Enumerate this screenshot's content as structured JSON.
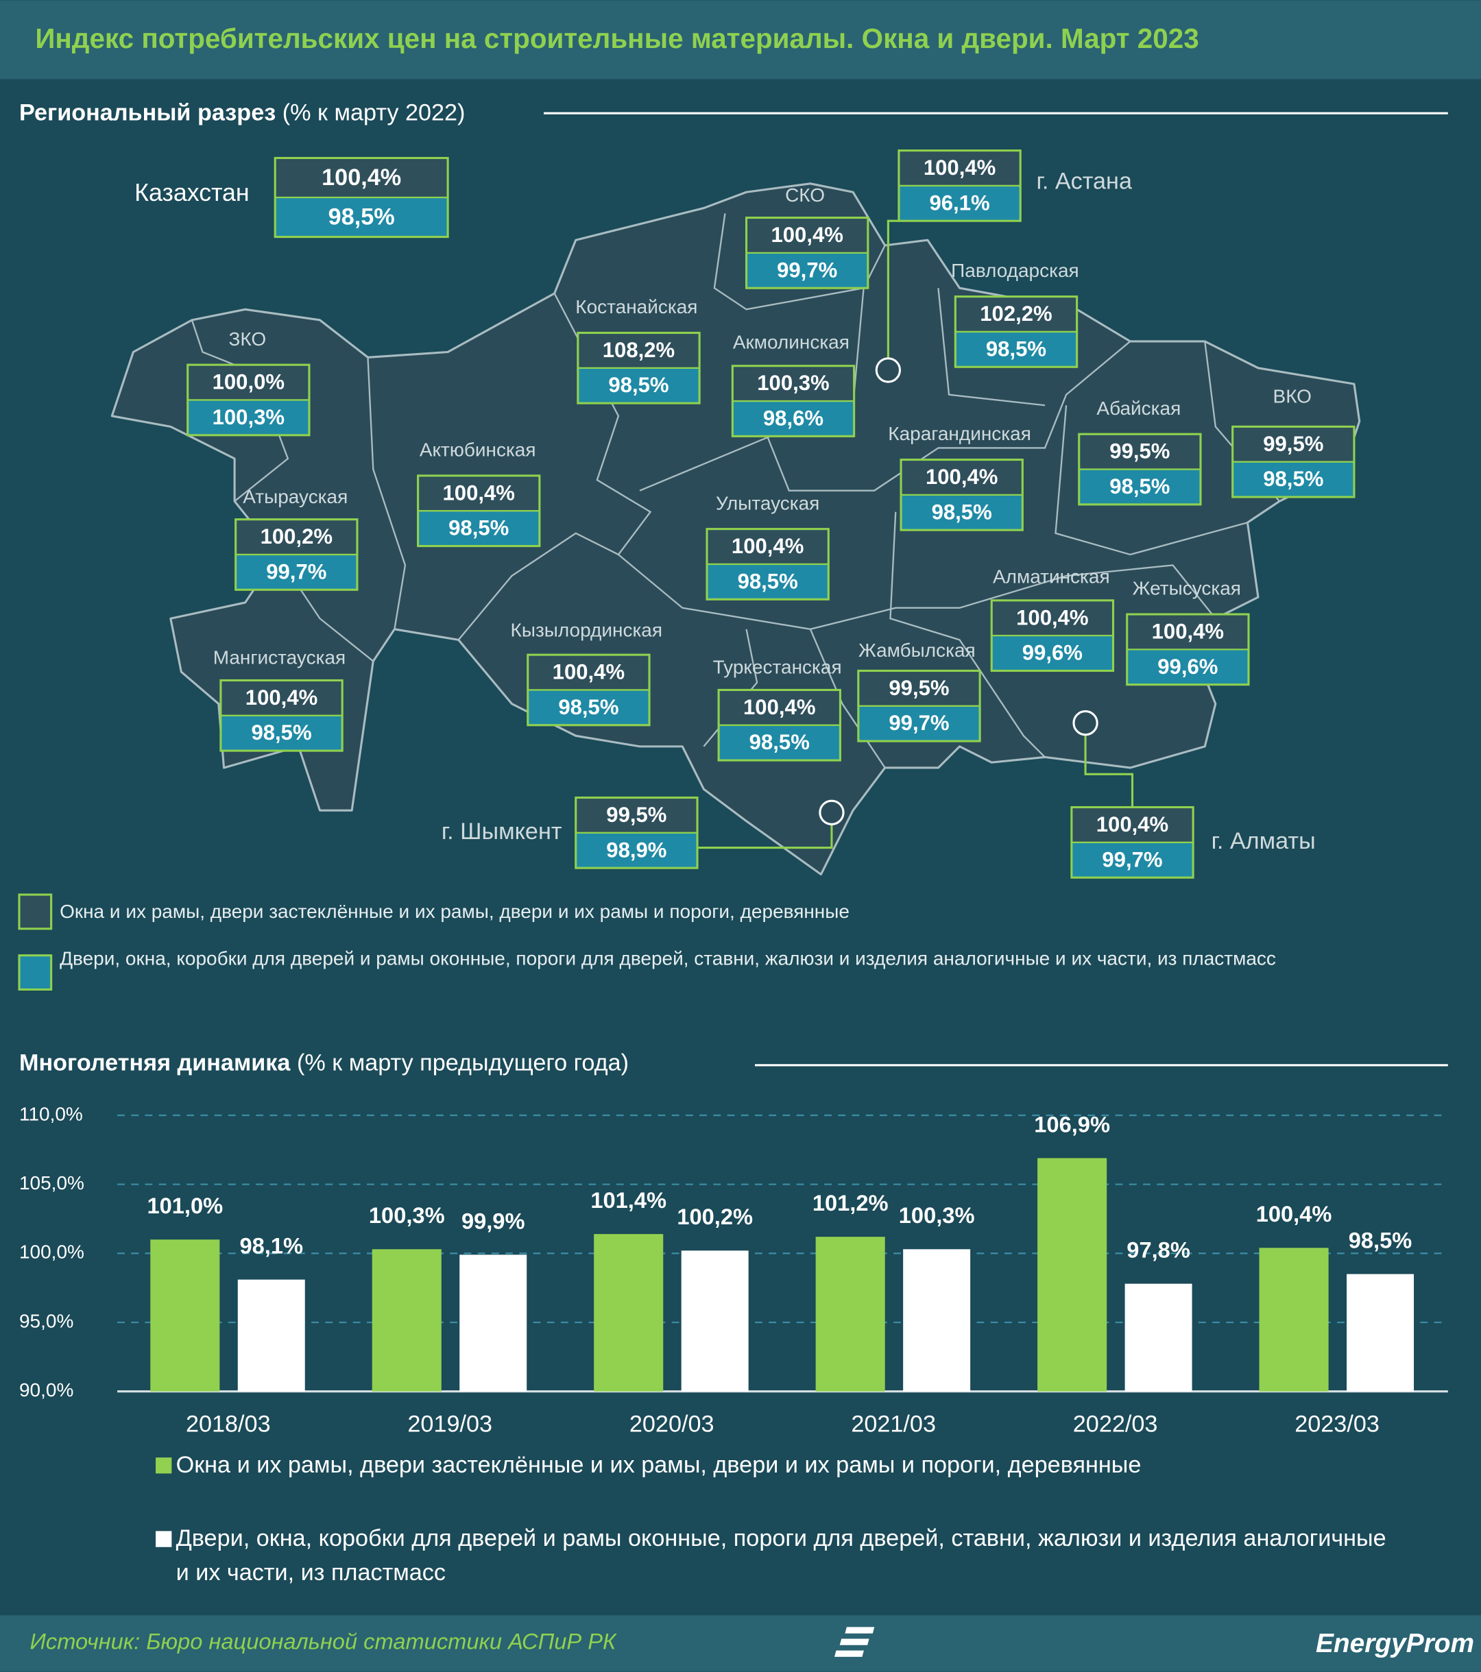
{
  "header": {
    "title": "Индекс потребительских цен на строительные материалы. Окна и двери. Март 2023"
  },
  "map": {
    "heading": "Региональный разрез",
    "heading_note": "(% к марту 2022)",
    "regions": [
      {
        "name": "Казахстан",
        "wood": "100,4%",
        "plastic": "98,5%"
      },
      {
        "name": "СКО",
        "wood": "100,4%",
        "plastic": "99,7%"
      },
      {
        "name": "г. Астана",
        "wood": "100,4%",
        "plastic": "96,1%"
      },
      {
        "name": "Павлодарская",
        "wood": "102,2%",
        "plastic": "98,5%"
      },
      {
        "name": "Костанайская",
        "wood": "108,2%",
        "plastic": "98,5%"
      },
      {
        "name": "Акмолинская",
        "wood": "100,3%",
        "plastic": "98,6%"
      },
      {
        "name": "ЗКО",
        "wood": "100,0%",
        "plastic": "100,3%"
      },
      {
        "name": "Актюбинская",
        "wood": "100,4%",
        "plastic": "98,5%"
      },
      {
        "name": "Атырауская",
        "wood": "100,2%",
        "plastic": "99,7%"
      },
      {
        "name": "Абайская",
        "wood": "99,5%",
        "plastic": "98,5%"
      },
      {
        "name": "ВКО",
        "wood": "99,5%",
        "plastic": "98,5%"
      },
      {
        "name": "Карагандинская",
        "wood": "100,4%",
        "plastic": "98,5%"
      },
      {
        "name": "Улытауская",
        "wood": "100,4%",
        "plastic": "98,5%"
      },
      {
        "name": "Алматинская",
        "wood": "100,4%",
        "plastic": "99,6%"
      },
      {
        "name": "Жетысуская",
        "wood": "100,4%",
        "plastic": "99,6%"
      },
      {
        "name": "Кызылординская",
        "wood": "100,4%",
        "plastic": "98,5%"
      },
      {
        "name": "Туркестанская",
        "wood": "100,4%",
        "plastic": "98,5%"
      },
      {
        "name": "Жамбылская",
        "wood": "99,5%",
        "plastic": "99,7%"
      },
      {
        "name": "Мангистауская",
        "wood": "100,4%",
        "plastic": "98,5%"
      },
      {
        "name": "г. Шымкент",
        "wood": "99,5%",
        "plastic": "98,9%"
      },
      {
        "name": "г. Алматы",
        "wood": "100,4%",
        "plastic": "99,7%"
      }
    ]
  },
  "chart_data": {
    "type": "bar",
    "heading": "Многолетняя динамика",
    "heading_note": "(% к марту предыдущего года)",
    "categories": [
      "2018/03",
      "2019/03",
      "2020/03",
      "2021/03",
      "2022/03",
      "2023/03"
    ],
    "series": [
      {
        "name": "Окна и их рамы, двери застеклённые и их рамы, двери и их рамы и пороги, деревянные",
        "color": "#92d050",
        "values": [
          101.0,
          100.3,
          101.4,
          101.2,
          106.9,
          100.4
        ],
        "value_labels": [
          "101,0%",
          "100,3%",
          "101,4%",
          "101,2%",
          "106,9%",
          "100,4%"
        ]
      },
      {
        "name": "Двери, окна, коробки для дверей и рамы оконные, пороги для дверей, ставни, жалюзи и изделия аналогичные и их части, из пластмасс",
        "color": "#ffffff",
        "values": [
          98.1,
          99.9,
          100.2,
          100.3,
          97.8,
          98.5
        ],
        "value_labels": [
          "98,1%",
          "99,9%",
          "100,2%",
          "100,3%",
          "97,8%",
          "98,5%"
        ]
      }
    ],
    "ylim": [
      90,
      110
    ],
    "yticks": [
      {
        "value": 90,
        "label": "90,0%"
      },
      {
        "value": 95,
        "label": "95,0%"
      },
      {
        "value": 100,
        "label": "100,0%"
      },
      {
        "value": 105,
        "label": "105,0%"
      },
      {
        "value": 110,
        "label": "110,0%"
      }
    ],
    "grid": true
  },
  "footer": {
    "source": "Источник: Бюро национальной статистики АСПиР РК",
    "logo": "EnergyProm"
  }
}
